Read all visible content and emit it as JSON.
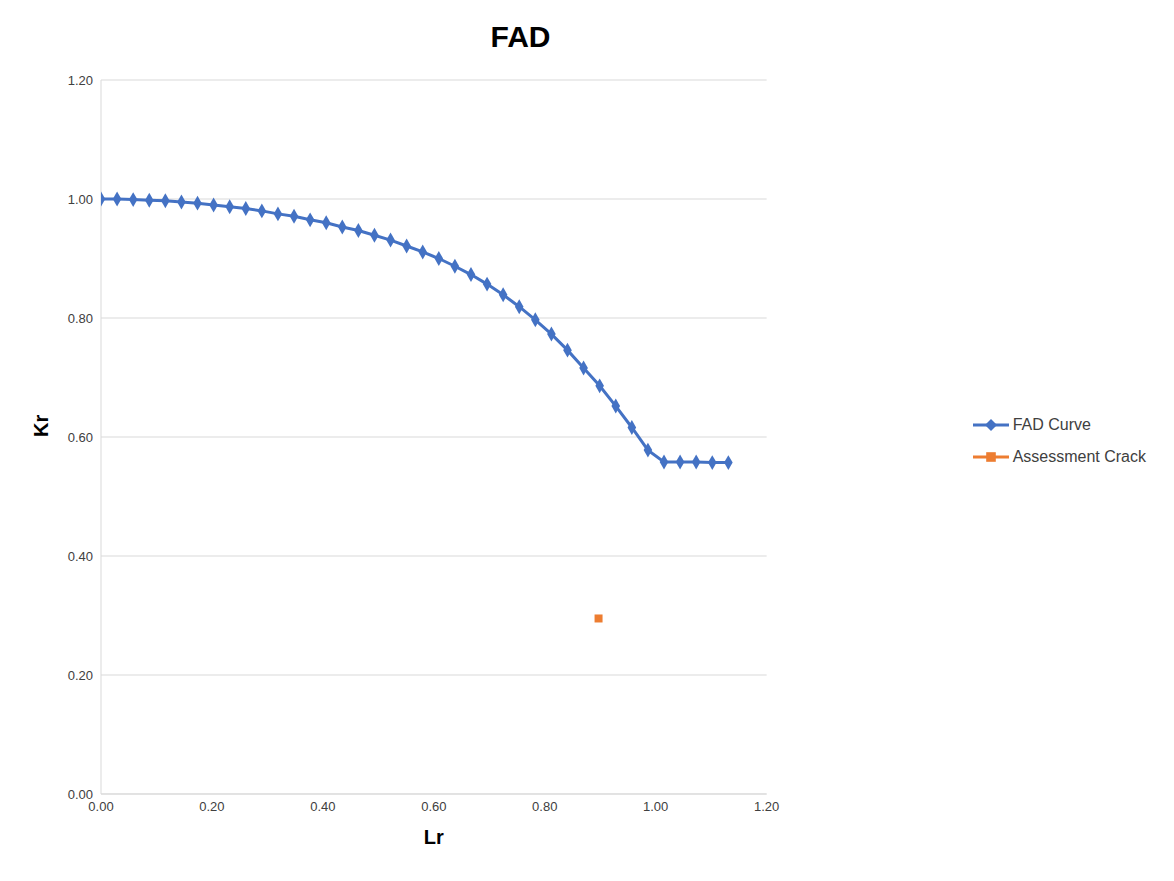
{
  "chart_data": {
    "type": "line",
    "title": "FAD",
    "x_label": "Lr",
    "y_label": "Kr",
    "xlim": [
      0,
      1.2
    ],
    "ylim": [
      0,
      1.2
    ],
    "xticks": [
      {
        "value": 0,
        "label": "0.00"
      },
      {
        "value": 0.2,
        "label": "0.20"
      },
      {
        "value": 0.4,
        "label": "0.40"
      },
      {
        "value": 0.6,
        "label": "0.60"
      },
      {
        "value": 0.8,
        "label": "0.80"
      },
      {
        "value": 1.0,
        "label": "1.00"
      },
      {
        "value": 1.2,
        "label": "1.20"
      }
    ],
    "yticks": [
      {
        "value": 0,
        "label": "0.00"
      },
      {
        "value": 0.2,
        "label": "0.20"
      },
      {
        "value": 0.4,
        "label": "0.40"
      },
      {
        "value": 0.6,
        "label": "0.60"
      },
      {
        "value": 0.8,
        "label": "0.80"
      },
      {
        "value": 1.0,
        "label": "1.00"
      },
      {
        "value": 1.2,
        "label": "1.20"
      }
    ],
    "grid": true,
    "legend": "right",
    "series": [
      {
        "name": "FAD Curve",
        "color": "#4472c4",
        "type": "line",
        "marker": "diamond",
        "x": [
          0,
          0.029,
          0.058,
          0.087,
          0.116,
          0.145,
          0.174,
          0.203,
          0.232,
          0.261,
          0.29,
          0.319,
          0.348,
          0.377,
          0.406,
          0.435,
          0.464,
          0.493,
          0.522,
          0.551,
          0.58,
          0.609,
          0.638,
          0.667,
          0.696,
          0.725,
          0.754,
          0.783,
          0.812,
          0.841,
          0.87,
          0.899,
          0.928,
          0.957,
          0.986,
          1.015,
          1.044,
          1.073,
          1.102,
          1.131
        ],
        "values": [
          1.0,
          1.0,
          0.999,
          0.998,
          0.997,
          0.995,
          0.993,
          0.99,
          0.987,
          0.984,
          0.98,
          0.975,
          0.971,
          0.965,
          0.96,
          0.953,
          0.947,
          0.939,
          0.931,
          0.921,
          0.911,
          0.9,
          0.887,
          0.873,
          0.857,
          0.839,
          0.819,
          0.797,
          0.773,
          0.746,
          0.716,
          0.686,
          0.652,
          0.616,
          0.578,
          0.558,
          0.558,
          0.558,
          0.557,
          0.557
        ]
      },
      {
        "name": "Assessment Crack",
        "color": "#ed7d31",
        "type": "scatter",
        "marker": "square",
        "x": [
          0.897
        ],
        "values": [
          0.295
        ]
      }
    ]
  }
}
